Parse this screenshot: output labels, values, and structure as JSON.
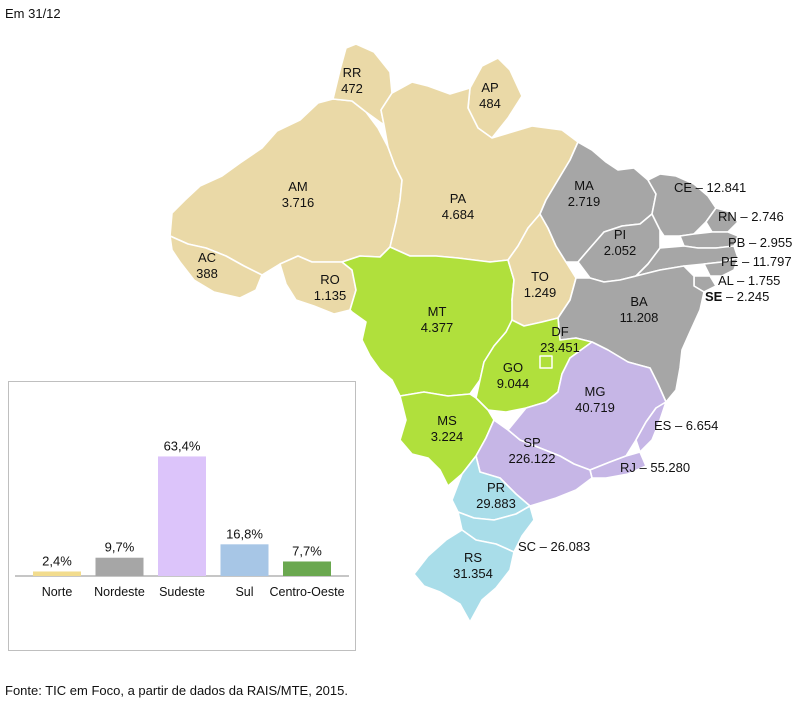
{
  "header": {
    "date_label": "Em 31/12"
  },
  "colors": {
    "Norte": "#ead9a7",
    "Nordeste": "#a6a6a6",
    "Sudeste": "#c6b6e6",
    "Sul": "#a9dde9",
    "Centro-Oeste": "#b0e03c",
    "border": "#ffffff"
  },
  "states": [
    {
      "code": "RR",
      "value": "472",
      "region": "Norte"
    },
    {
      "code": "AP",
      "value": "484",
      "region": "Norte"
    },
    {
      "code": "AM",
      "value": "3.716",
      "region": "Norte"
    },
    {
      "code": "PA",
      "value": "4.684",
      "region": "Norte"
    },
    {
      "code": "AC",
      "value": "388",
      "region": "Norte"
    },
    {
      "code": "RO",
      "value": "1.135",
      "region": "Norte"
    },
    {
      "code": "TO",
      "value": "1.249",
      "region": "Norte"
    },
    {
      "code": "MA",
      "value": "2.719",
      "region": "Nordeste"
    },
    {
      "code": "PI",
      "value": "2.052",
      "region": "Nordeste"
    },
    {
      "code": "BA",
      "value": "11.208",
      "region": "Nordeste"
    },
    {
      "code": "CE",
      "value": "12.841",
      "region": "Nordeste"
    },
    {
      "code": "RN",
      "value": "2.746",
      "region": "Nordeste"
    },
    {
      "code": "PB",
      "value": "2.955",
      "region": "Nordeste"
    },
    {
      "code": "PE",
      "value": "11.797",
      "region": "Nordeste"
    },
    {
      "code": "AL",
      "value": "1.755",
      "region": "Nordeste"
    },
    {
      "code": "SE",
      "value": "2.245",
      "region": "Nordeste"
    },
    {
      "code": "MT",
      "value": "4.377",
      "region": "Centro-Oeste"
    },
    {
      "code": "MS",
      "value": "3.224",
      "region": "Centro-Oeste"
    },
    {
      "code": "GO",
      "value": "9.044",
      "region": "Centro-Oeste"
    },
    {
      "code": "DF",
      "value": "23.451",
      "region": "Centro-Oeste"
    },
    {
      "code": "MG",
      "value": "40.719",
      "region": "Sudeste"
    },
    {
      "code": "SP",
      "value": "226.122",
      "region": "Sudeste"
    },
    {
      "code": "ES",
      "value": "6.654",
      "region": "Sudeste"
    },
    {
      "code": "RJ",
      "value": "55.280",
      "region": "Sudeste"
    },
    {
      "code": "PR",
      "value": "29.883",
      "region": "Sul"
    },
    {
      "code": "SC",
      "value": "26.083",
      "region": "Sul"
    },
    {
      "code": "RS",
      "value": "31.354",
      "region": "Sul"
    }
  ],
  "chart_data": {
    "type": "bar",
    "categories": [
      "Norte",
      "Nordeste",
      "Sudeste",
      "Sul",
      "Centro-Oeste"
    ],
    "values": [
      2.4,
      9.7,
      63.4,
      16.8,
      7.7
    ],
    "value_labels": [
      "2,4%",
      "9,7%",
      "63,4%",
      "16,8%",
      "7,7%"
    ],
    "colors": [
      "#f2dc8e",
      "#a6a6a6",
      "#dcc4fa",
      "#a7c6e6",
      "#6aa84f"
    ],
    "ylim": [
      0,
      70
    ],
    "grid": false,
    "title": "",
    "xlabel": "",
    "ylabel": ""
  },
  "footer": {
    "source": "Fonte: TIC em Foco, a partir de dados da RAIS/MTE, 2015."
  }
}
